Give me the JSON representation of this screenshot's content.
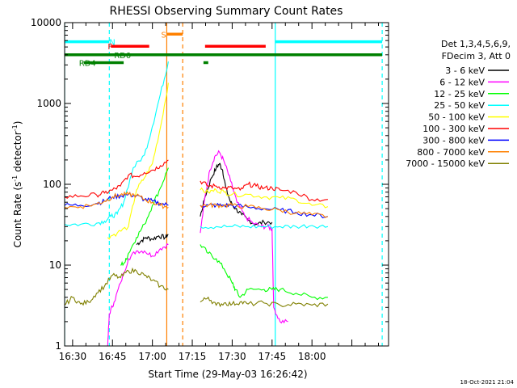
{
  "chart_data": {
    "type": "line",
    "title": "RHESSI Observing Summary Count Rates",
    "xlabel": "Start Time (29-May-03 16:26:42)",
    "ylabel_main": "Count Rate (s",
    "ylabel_sup1": "-1",
    "ylabel_mid": " detector",
    "ylabel_sup2": "-1",
    "ylabel_end": ")",
    "y_scale": "log",
    "ylim": [
      1,
      10000
    ],
    "xlim_minutes": [
      16.45,
      18.48
    ],
    "x_ticks": [
      {
        "label": "16:30",
        "t": 16.5
      },
      {
        "label": "16:45",
        "t": 16.75
      },
      {
        "label": "17:00",
        "t": 17.0
      },
      {
        "label": "17:15",
        "t": 17.25
      },
      {
        "label": "17:30",
        "t": 17.5
      },
      {
        "label": "17:45",
        "t": 17.75
      },
      {
        "label": "18:00",
        "t": 18.0
      }
    ],
    "y_ticks": [
      {
        "label": "1",
        "v": 1
      },
      {
        "label": "10",
        "v": 10
      },
      {
        "label": "100",
        "v": 100
      },
      {
        "label": "1000",
        "v": 1000
      },
      {
        "label": "10000",
        "v": 10000
      }
    ],
    "legend_header": [
      "Det 1,3,4,5,6,9,",
      "FDecim 3, Att 0"
    ],
    "legend_position": "right",
    "footer_date": "18-Oct-2021 21:04",
    "series": [
      {
        "name": "3 - 6 keV",
        "color": "#000000",
        "points": [
          [
            16.9,
            18
          ],
          [
            16.93,
            20
          ],
          [
            16.96,
            22
          ],
          [
            17.0,
            21
          ],
          [
            17.04,
            23
          ],
          [
            17.08,
            22
          ],
          [
            17.1,
            24
          ],
          [
            null,
            null
          ],
          [
            17.3,
            40
          ],
          [
            17.33,
            70
          ],
          [
            17.37,
            120
          ],
          [
            17.4,
            160
          ],
          [
            17.42,
            180
          ],
          [
            17.44,
            150
          ],
          [
            17.46,
            90
          ],
          [
            17.49,
            60
          ],
          [
            17.52,
            50
          ],
          [
            17.56,
            42
          ],
          [
            17.6,
            36
          ],
          [
            17.65,
            32
          ],
          [
            17.7,
            34
          ],
          [
            17.75,
            34
          ]
        ]
      },
      {
        "name": "6 - 12 keV",
        "color": "#ff00ff",
        "points": [
          [
            16.72,
            1
          ],
          [
            16.73,
            2.5
          ],
          [
            16.76,
            3.5
          ],
          [
            16.8,
            6
          ],
          [
            16.85,
            12
          ],
          [
            16.9,
            15
          ],
          [
            16.95,
            15
          ],
          [
            17.0,
            13
          ],
          [
            17.05,
            16
          ],
          [
            17.1,
            18
          ],
          [
            null,
            null
          ],
          [
            17.3,
            25
          ],
          [
            17.33,
            70
          ],
          [
            17.36,
            150
          ],
          [
            17.39,
            220
          ],
          [
            17.42,
            250
          ],
          [
            17.45,
            190
          ],
          [
            17.49,
            110
          ],
          [
            17.53,
            60
          ],
          [
            17.58,
            40
          ],
          [
            17.63,
            33
          ],
          [
            17.68,
            30
          ],
          [
            17.72,
            30
          ],
          [
            17.75,
            28
          ],
          [
            17.76,
            3
          ],
          [
            17.8,
            2
          ],
          [
            17.85,
            2
          ]
        ]
      },
      {
        "name": "12 - 25 keV",
        "color": "#00ff00",
        "points": [
          [
            16.8,
            10
          ],
          [
            16.83,
            11
          ],
          [
            16.85,
            14
          ],
          [
            16.9,
            22
          ],
          [
            16.95,
            32
          ],
          [
            17.0,
            55
          ],
          [
            17.05,
            90
          ],
          [
            17.1,
            160
          ],
          [
            null,
            null
          ],
          [
            17.3,
            18
          ],
          [
            17.35,
            14
          ],
          [
            17.4,
            12
          ],
          [
            17.45,
            9
          ],
          [
            17.5,
            6
          ],
          [
            17.52,
            5
          ],
          [
            17.55,
            4
          ],
          [
            17.6,
            5
          ],
          [
            17.7,
            5
          ],
          [
            17.75,
            5
          ],
          [
            17.8,
            5
          ],
          [
            17.9,
            4.5
          ],
          [
            18.0,
            4
          ],
          [
            18.1,
            4
          ]
        ]
      },
      {
        "name": "25 - 50 keV",
        "color": "#00ffff",
        "points": [
          [
            16.45,
            32
          ],
          [
            16.55,
            32
          ],
          [
            16.65,
            33
          ],
          [
            16.7,
            35
          ],
          [
            16.74,
            40
          ],
          [
            16.78,
            43
          ],
          [
            16.82,
            60
          ],
          [
            16.88,
            160
          ],
          [
            16.95,
            230
          ],
          [
            17.0,
            520
          ],
          [
            17.05,
            1300
          ],
          [
            17.1,
            3300
          ],
          [
            null,
            null
          ],
          [
            17.3,
            30
          ],
          [
            17.4,
            30
          ],
          [
            17.5,
            30
          ],
          [
            17.6,
            30
          ],
          [
            17.7,
            30
          ],
          [
            17.8,
            30
          ],
          [
            17.9,
            30
          ],
          [
            18.0,
            31
          ],
          [
            18.1,
            30
          ]
        ]
      },
      {
        "name": "50 - 100 keV",
        "color": "#ffff00",
        "points": [
          [
            16.72,
            22
          ],
          [
            16.78,
            25
          ],
          [
            16.85,
            30
          ],
          [
            16.9,
            85
          ],
          [
            16.95,
            120
          ],
          [
            17.0,
            180
          ],
          [
            17.05,
            500
          ],
          [
            17.1,
            1800
          ],
          [
            null,
            null
          ],
          [
            17.3,
            85
          ],
          [
            17.35,
            80
          ],
          [
            17.4,
            85
          ],
          [
            17.45,
            80
          ],
          [
            17.5,
            75
          ],
          [
            17.6,
            75
          ],
          [
            17.7,
            70
          ],
          [
            17.8,
            68
          ],
          [
            17.9,
            65
          ],
          [
            18.0,
            55
          ],
          [
            18.1,
            53
          ]
        ]
      },
      {
        "name": "100 - 300 keV",
        "color": "#ff0000",
        "points": [
          [
            16.45,
            70
          ],
          [
            16.55,
            72
          ],
          [
            16.65,
            74
          ],
          [
            16.7,
            78
          ],
          [
            16.75,
            85
          ],
          [
            16.8,
            95
          ],
          [
            16.85,
            130
          ],
          [
            16.9,
            125
          ],
          [
            16.95,
            140
          ],
          [
            17.0,
            150
          ],
          [
            17.05,
            170
          ],
          [
            17.1,
            200
          ],
          [
            null,
            null
          ],
          [
            17.3,
            110
          ],
          [
            17.35,
            95
          ],
          [
            17.4,
            95
          ],
          [
            17.45,
            90
          ],
          [
            17.5,
            90
          ],
          [
            17.55,
            85
          ],
          [
            17.6,
            100
          ],
          [
            17.65,
            95
          ],
          [
            17.7,
            90
          ],
          [
            17.75,
            90
          ],
          [
            17.8,
            85
          ],
          [
            17.9,
            80
          ],
          [
            18.0,
            65
          ],
          [
            18.1,
            65
          ]
        ]
      },
      {
        "name": "300 - 800 keV",
        "color": "#0000ff",
        "points": [
          [
            16.45,
            55
          ],
          [
            16.55,
            55
          ],
          [
            16.65,
            58
          ],
          [
            16.7,
            62
          ],
          [
            16.75,
            70
          ],
          [
            16.8,
            72
          ],
          [
            16.85,
            75
          ],
          [
            16.9,
            72
          ],
          [
            16.95,
            65
          ],
          [
            17.0,
            62
          ],
          [
            17.05,
            58
          ],
          [
            17.1,
            55
          ],
          [
            null,
            null
          ],
          [
            17.3,
            55
          ],
          [
            17.35,
            55
          ],
          [
            17.4,
            55
          ],
          [
            17.45,
            55
          ],
          [
            17.5,
            55
          ],
          [
            17.6,
            52
          ],
          [
            17.7,
            50
          ],
          [
            17.8,
            48
          ],
          [
            17.9,
            45
          ],
          [
            18.0,
            42
          ],
          [
            18.1,
            40
          ]
        ]
      },
      {
        "name": "800 - 7000 keV",
        "color": "#ff8000",
        "points": [
          [
            16.45,
            52
          ],
          [
            16.55,
            53
          ],
          [
            16.65,
            57
          ],
          [
            16.7,
            62
          ],
          [
            16.75,
            70
          ],
          [
            16.8,
            74
          ],
          [
            16.85,
            75
          ],
          [
            16.9,
            73
          ],
          [
            16.95,
            65
          ],
          [
            17.0,
            60
          ],
          [
            17.05,
            55
          ],
          [
            17.1,
            52
          ],
          [
            null,
            null
          ],
          [
            17.3,
            55
          ],
          [
            17.35,
            55
          ],
          [
            17.4,
            55
          ],
          [
            17.45,
            55
          ],
          [
            17.5,
            55
          ],
          [
            17.6,
            53
          ],
          [
            17.7,
            50
          ],
          [
            17.8,
            48
          ],
          [
            17.9,
            44
          ],
          [
            18.0,
            42
          ],
          [
            18.1,
            40
          ]
        ]
      },
      {
        "name": "7000 - 15000 keV",
        "color": "#808000",
        "points": [
          [
            16.45,
            3.2
          ],
          [
            16.5,
            4
          ],
          [
            16.55,
            3.3
          ],
          [
            16.6,
            3.5
          ],
          [
            16.65,
            4.5
          ],
          [
            16.7,
            5.5
          ],
          [
            16.75,
            7.5
          ],
          [
            16.8,
            7
          ],
          [
            16.85,
            8.5
          ],
          [
            16.9,
            8.5
          ],
          [
            16.95,
            7.5
          ],
          [
            17.0,
            6.5
          ],
          [
            17.05,
            5.5
          ],
          [
            17.1,
            5
          ],
          [
            null,
            null
          ],
          [
            17.3,
            3.5
          ],
          [
            17.35,
            4
          ],
          [
            17.4,
            3.2
          ],
          [
            17.45,
            3.4
          ],
          [
            17.5,
            3.3
          ],
          [
            17.55,
            3.5
          ],
          [
            17.6,
            3.3
          ],
          [
            17.7,
            3.4
          ],
          [
            17.8,
            3.2
          ],
          [
            17.9,
            3.3
          ],
          [
            18.0,
            3.2
          ],
          [
            18.1,
            3.3
          ]
        ]
      }
    ],
    "flag_bars": [
      {
        "label": "N",
        "color": "#00ffff",
        "v": 5800,
        "segments": [
          [
            16.45,
            16.73
          ],
          [
            17.77,
            18.44
          ]
        ],
        "label_t": 16.73
      },
      {
        "label": "S",
        "color": "#ff8000",
        "v": 7200,
        "segments": [
          [
            17.09,
            17.19
          ]
        ],
        "label_t": 17.055
      },
      {
        "label": "F",
        "color": "#ff0000",
        "v": 5100,
        "segments": [
          [
            16.74,
            16.98
          ],
          [
            17.33,
            17.71
          ]
        ],
        "label_t": 16.72
      },
      {
        "label": "RD0",
        "color": "#008000",
        "v": 4000,
        "segments": [
          [
            16.45,
            18.44
          ]
        ],
        "label_t": 16.76
      },
      {
        "label": "RD4",
        "color": "#008000",
        "v": 3200,
        "segments": [
          [
            16.57,
            16.82
          ],
          [
            17.32,
            17.35
          ]
        ],
        "label_t": 16.54
      }
    ],
    "vlines": [
      {
        "t": 16.45,
        "color": "#00ffff",
        "style": "solid"
      },
      {
        "t": 16.73,
        "color": "#00ffff",
        "style": "dashed"
      },
      {
        "t": 17.09,
        "color": "#ff8000",
        "style": "solid"
      },
      {
        "t": 17.19,
        "color": "#ff8000",
        "style": "dashed"
      },
      {
        "t": 17.77,
        "color": "#00ffff",
        "style": "solid"
      },
      {
        "t": 18.44,
        "color": "#00ffff",
        "style": "dashed"
      }
    ]
  }
}
